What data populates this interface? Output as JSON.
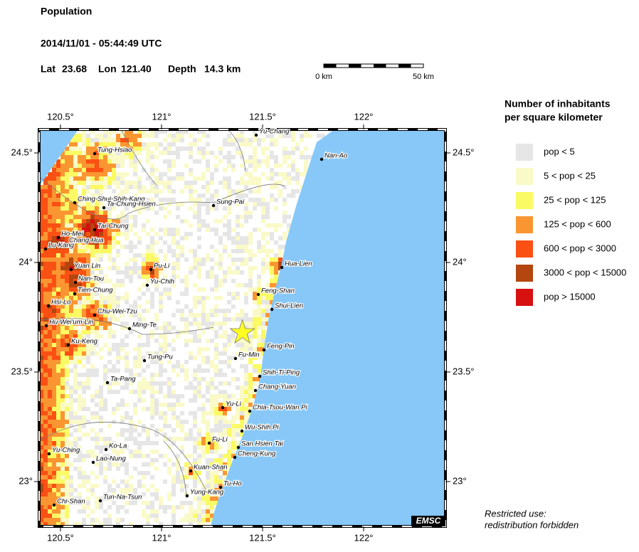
{
  "header": {
    "title": "Population",
    "datetime": "2014/11/01 - 05:44:49 UTC",
    "lat_label": "Lat",
    "lat": 23.68,
    "lon_label": "Lon",
    "lon": {
      "value": 121.4,
      "label": "121.40"
    },
    "depth_label": "Depth",
    "depth": "14.3 km"
  },
  "scale_bar": {
    "start": "0 km",
    "end": "50 km"
  },
  "map": {
    "lon_ticks": [
      {
        "value": 120.5,
        "label": "120.5°"
      },
      {
        "value": 121,
        "label": "121°"
      },
      {
        "value": 121.5,
        "label": "121.5°"
      },
      {
        "value": 122,
        "label": "122°"
      }
    ],
    "lat_ticks": [
      {
        "value": 24.5,
        "label": "24.5°"
      },
      {
        "value": 24,
        "label": "24°"
      },
      {
        "value": 23.5,
        "label": "23.5°"
      },
      {
        "value": 23,
        "label": "23°"
      }
    ],
    "places": [
      "Yu-Chang",
      "Nan-Ao",
      "Tung-Hsiao",
      "Ching-Shui-Shih-Kang",
      "Ta-Chung-Hsien",
      "Sung-Pai",
      "Tai-Chung",
      "Ho-Mei",
      "Chang-Hua",
      "Lu-Kang",
      "Hua-Lien",
      "Yuan Lin",
      "Pu-Li",
      "Nan-Tou",
      "Yu-Chih",
      "Tien-Chung",
      "Feng-Shan",
      "Hsi-Lo",
      "Shui-Lien",
      "Chu-Wei-Tzu",
      "Hu-Wei'um-Lin",
      "Ming-Te",
      "Ku-Keng",
      "Feng-Pin",
      "Fu-Min",
      "Tung-Pu",
      "Shih-Ti-Ping",
      "Ta-Pang",
      "Chang-Yuan",
      "Yu-Li",
      "Chia-Tsou-Wan Pi",
      "Wu-Shih Pi",
      "Fu-Li",
      "San Hsien Tai",
      "Ko-La",
      "Yu-Ching",
      "Cheng-Kung",
      "Lao-Nung",
      "Kuan-Shan",
      "Tu-Ho",
      "Yung-Kang",
      "Tun-Na-Tsun",
      "Chi-Shan"
    ],
    "credit": "EMSC"
  },
  "legend": {
    "title": [
      "Number of inhabitants",
      "per square kilometer"
    ],
    "items": [
      {
        "label": "pop < 5",
        "color": "#e6e6e6"
      },
      {
        "label": "5 < pop < 25",
        "color": "#fafac8"
      },
      {
        "label": "25 < pop < 125",
        "color": "#fafa64"
      },
      {
        "label": "125 < pop < 600",
        "color": "#fa9632"
      },
      {
        "label": "600 < pop < 3000",
        "color": "#fa5014"
      },
      {
        "label": "3000 < pop < 15000",
        "color": "#b4460f"
      },
      {
        "label": "pop > 15000",
        "color": "#d71010"
      }
    ]
  },
  "footer": [
    "Restricted use:",
    "redistribution forbidden"
  ]
}
